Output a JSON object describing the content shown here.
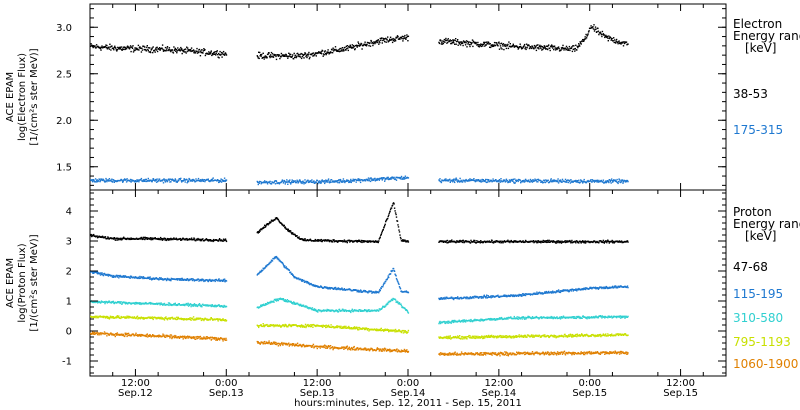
{
  "chart_data": {
    "type": "scatter",
    "xlabel": "hours:minutes, Sep. 12, 2011 - Sep. 15, 2011",
    "xlim_hours": [
      0,
      84
    ],
    "x_ticks": [
      {
        "hours": 6,
        "time": "12:00",
        "date": "Sep.12"
      },
      {
        "hours": 18,
        "time": "0:00",
        "date": "Sep.13"
      },
      {
        "hours": 30,
        "time": "12:00",
        "date": "Sep.13"
      },
      {
        "hours": 42,
        "time": "0:00",
        "date": "Sep.14"
      },
      {
        "hours": 54,
        "time": "12:00",
        "date": "Sep.14"
      },
      {
        "hours": 66,
        "time": "0:00",
        "date": "Sep.15"
      },
      {
        "hours": 78,
        "time": "12:00",
        "date": "Sep.15"
      }
    ],
    "data_segments_hours": [
      [
        0,
        18
      ],
      [
        22,
        42
      ],
      [
        46,
        71
      ]
    ],
    "panels": [
      {
        "id": "electron",
        "ylabel_lines": [
          "ACE EPAM",
          "log(Electron Flux)",
          "[1/(cm²s ster MeV)]"
        ],
        "ylim": [
          1.25,
          3.25
        ],
        "yticks": [
          1.5,
          2.0,
          2.5,
          3.0
        ],
        "ytick_labels": [
          "1.5",
          "2.0",
          "2.5",
          "3.0"
        ],
        "legend_title": [
          "Electron",
          "Energy range",
          "[keV]"
        ],
        "series": [
          {
            "name": "38-53",
            "color": "#000000",
            "profile": [
              [
                0,
                2.8
              ],
              [
                4,
                2.78
              ],
              [
                10,
                2.77
              ],
              [
                18,
                2.72
              ],
              [
                22,
                2.7
              ],
              [
                28,
                2.7
              ],
              [
                34,
                2.78
              ],
              [
                38,
                2.86
              ],
              [
                42,
                2.9
              ],
              [
                46,
                2.86
              ],
              [
                56,
                2.8
              ],
              [
                64,
                2.77
              ],
              [
                65.5,
                2.9
              ],
              [
                66,
                3.02
              ],
              [
                68,
                2.9
              ],
              [
                71,
                2.82
              ]
            ],
            "noise": 0.05
          },
          {
            "name": "175-315",
            "color": "#1e78d0",
            "profile": [
              [
                0,
                1.36
              ],
              [
                18,
                1.36
              ],
              [
                22,
                1.34
              ],
              [
                32,
                1.35
              ],
              [
                42,
                1.39
              ],
              [
                46,
                1.36
              ],
              [
                71,
                1.35
              ]
            ],
            "noise": 0.03
          }
        ]
      },
      {
        "id": "proton",
        "ylabel_lines": [
          "ACE EPAM",
          "log(Proton Flux)",
          "[1/(cm²s ster MeV)]"
        ],
        "ylim": [
          -1.5,
          4.7
        ],
        "yticks": [
          -1,
          0,
          1,
          2,
          3,
          4
        ],
        "ytick_labels": [
          "-1",
          "0",
          "1",
          "2",
          "3",
          "4"
        ],
        "legend_title": [
          "Proton",
          "Energy range",
          "[keV]"
        ],
        "series": [
          {
            "name": "47-68",
            "color": "#000000",
            "profile": [
              [
                0,
                3.2
              ],
              [
                3,
                3.1
              ],
              [
                8,
                3.1
              ],
              [
                18,
                3.05
              ],
              [
                22,
                3.3
              ],
              [
                24.5,
                3.8
              ],
              [
                26,
                3.4
              ],
              [
                28,
                3.05
              ],
              [
                38,
                3.0
              ],
              [
                40,
                4.3
              ],
              [
                41,
                3.05
              ],
              [
                42,
                3.0
              ],
              [
                46,
                3.0
              ],
              [
                71,
                3.0
              ]
            ],
            "noise": 0.06
          },
          {
            "name": "115-195",
            "color": "#1e78d0",
            "profile": [
              [
                0,
                2.0
              ],
              [
                3,
                1.85
              ],
              [
                10,
                1.75
              ],
              [
                18,
                1.7
              ],
              [
                22,
                1.9
              ],
              [
                24.5,
                2.5
              ],
              [
                27,
                1.8
              ],
              [
                30,
                1.5
              ],
              [
                38,
                1.3
              ],
              [
                40,
                2.1
              ],
              [
                41,
                1.35
              ],
              [
                42,
                1.3
              ],
              [
                46,
                1.1
              ],
              [
                56,
                1.2
              ],
              [
                66,
                1.45
              ],
              [
                71,
                1.5
              ]
            ],
            "noise": 0.06
          },
          {
            "name": "310-580",
            "color": "#30d0d0",
            "profile": [
              [
                0,
                1.0
              ],
              [
                6,
                0.95
              ],
              [
                18,
                0.85
              ],
              [
                22,
                0.8
              ],
              [
                25,
                1.1
              ],
              [
                30,
                0.7
              ],
              [
                38,
                0.7
              ],
              [
                40,
                1.1
              ],
              [
                42,
                0.65
              ],
              [
                46,
                0.3
              ],
              [
                55,
                0.45
              ],
              [
                71,
                0.5
              ]
            ],
            "noise": 0.06
          },
          {
            "name": "795-1193",
            "color": "#c8e000",
            "profile": [
              [
                0,
                0.5
              ],
              [
                18,
                0.4
              ],
              [
                22,
                0.2
              ],
              [
                30,
                0.2
              ],
              [
                42,
                0.0
              ],
              [
                46,
                -0.2
              ],
              [
                71,
                -0.1
              ]
            ],
            "noise": 0.07
          },
          {
            "name": "1060-1900",
            "color": "#e08000",
            "profile": [
              [
                0,
                -0.05
              ],
              [
                18,
                -0.25
              ],
              [
                22,
                -0.35
              ],
              [
                30,
                -0.5
              ],
              [
                42,
                -0.65
              ],
              [
                46,
                -0.75
              ],
              [
                71,
                -0.7
              ]
            ],
            "noise": 0.08
          }
        ]
      }
    ]
  }
}
